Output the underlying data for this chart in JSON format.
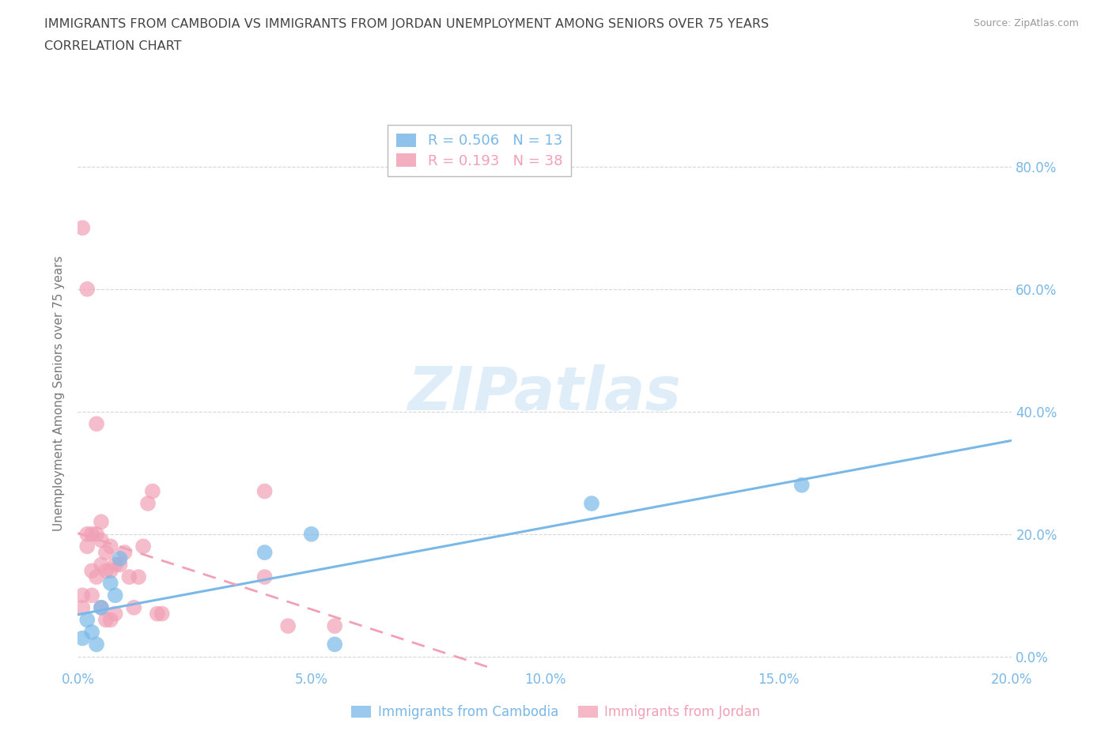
{
  "title_line1": "IMMIGRANTS FROM CAMBODIA VS IMMIGRANTS FROM JORDAN UNEMPLOYMENT AMONG SENIORS OVER 75 YEARS",
  "title_line2": "CORRELATION CHART",
  "source": "Source: ZipAtlas.com",
  "ylabel": "Unemployment Among Seniors over 75 years",
  "xlim": [
    0.0,
    0.2
  ],
  "ylim": [
    -0.02,
    0.88
  ],
  "xticks": [
    0.0,
    0.05,
    0.1,
    0.15,
    0.2
  ],
  "yticks": [
    0.0,
    0.2,
    0.4,
    0.6,
    0.8
  ],
  "watermark": "ZIPatlas",
  "legend_cambodia_label": "Immigrants from Cambodia",
  "legend_jordan_label": "Immigrants from Jordan",
  "R_cambodia": 0.506,
  "N_cambodia": 13,
  "R_jordan": 0.193,
  "N_jordan": 38,
  "cambodia_color": "#7ab8e8",
  "jordan_color": "#f2a0b5",
  "background_color": "#ffffff",
  "grid_color": "#cccccc",
  "title_color": "#555555",
  "tick_color": "#7ab8e8",
  "cambodia_x": [
    0.001,
    0.002,
    0.003,
    0.004,
    0.005,
    0.007,
    0.008,
    0.009,
    0.04,
    0.05,
    0.055,
    0.11,
    0.155
  ],
  "cambodia_y": [
    0.03,
    0.06,
    0.04,
    0.02,
    0.08,
    0.12,
    0.1,
    0.16,
    0.17,
    0.2,
    0.02,
    0.25,
    0.28
  ],
  "jordan_x": [
    0.001,
    0.001,
    0.001,
    0.002,
    0.002,
    0.002,
    0.003,
    0.003,
    0.003,
    0.004,
    0.004,
    0.004,
    0.005,
    0.005,
    0.005,
    0.005,
    0.006,
    0.006,
    0.006,
    0.007,
    0.007,
    0.007,
    0.008,
    0.008,
    0.009,
    0.01,
    0.011,
    0.012,
    0.013,
    0.014,
    0.015,
    0.016,
    0.017,
    0.018,
    0.04,
    0.04,
    0.045,
    0.055
  ],
  "jordan_y": [
    0.7,
    0.1,
    0.08,
    0.6,
    0.2,
    0.18,
    0.2,
    0.14,
    0.1,
    0.38,
    0.2,
    0.13,
    0.22,
    0.19,
    0.15,
    0.08,
    0.17,
    0.14,
    0.06,
    0.18,
    0.14,
    0.06,
    0.15,
    0.07,
    0.15,
    0.17,
    0.13,
    0.08,
    0.13,
    0.18,
    0.25,
    0.27,
    0.07,
    0.07,
    0.27,
    0.13,
    0.05,
    0.05
  ]
}
